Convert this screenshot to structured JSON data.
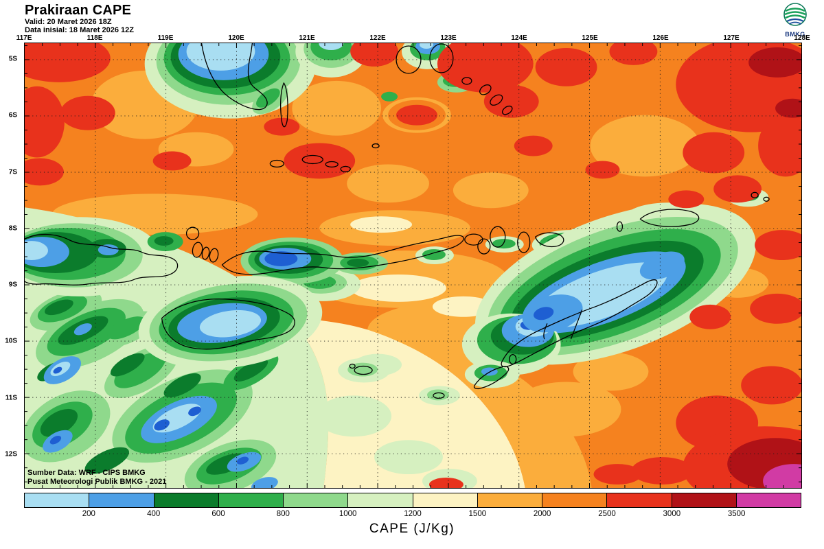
{
  "header": {
    "title": "Prakiraan CAPE",
    "valid_line": "Valid: 20 Maret 2026 18Z",
    "init_line": "Data inisial: 18 Maret 2026 12Z"
  },
  "logo": {
    "label": "BMKG"
  },
  "axes": {
    "lon_labels": [
      "117E",
      "118E",
      "119E",
      "120E",
      "121E",
      "122E",
      "123E",
      "124E",
      "125E",
      "126E",
      "127E",
      "128E"
    ],
    "lat_labels": [
      "5S",
      "6S",
      "7S",
      "8S",
      "9S",
      "10S",
      "11S",
      "12S"
    ]
  },
  "map": {
    "attribution_line1": "Sumber Data: WRF - CIPS BMKG",
    "attribution_line2": "Pusat Meteorologi Publik BMKG - 2021"
  },
  "colorbar": {
    "title": "CAPE (J/Kg)",
    "units": "J/Kg",
    "tick_labels": [
      "200",
      "400",
      "600",
      "800",
      "1000",
      "1200",
      "1500",
      "2000",
      "2500",
      "3000",
      "3500"
    ],
    "segment_colors": [
      "#A9DEF2",
      "#4D9FE6",
      "#0B7C2C",
      "#2FAF4B",
      "#8FD98C",
      "#D6F0C0",
      "#FDF3C3",
      "#FBAD3C",
      "#F5821F",
      "#E8321C",
      "#B01217",
      "#D13BA4"
    ]
  },
  "palette": {
    "orange": "#F5821F",
    "amber": "#FBAD3C",
    "cream": "#FDF3C3",
    "pale_green": "#D6F0C0",
    "light_green": "#8FD98C",
    "green": "#2FAF4B",
    "dark_green": "#0B7C2C",
    "light_blue": "#A9DEF2",
    "blue": "#4D9FE6",
    "dark_blue": "#1E5FD2",
    "red": "#E8321C",
    "dark_red": "#B01217",
    "magenta": "#D13BA4"
  }
}
